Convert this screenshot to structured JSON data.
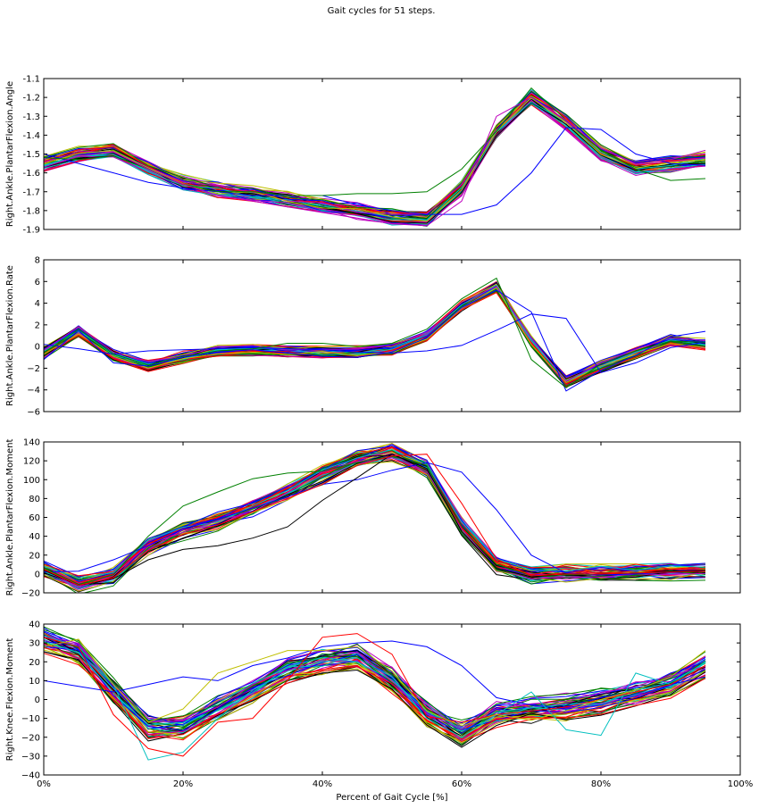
{
  "figure_title": "Gait cycles for 51 steps.",
  "palette": [
    "#0000ff",
    "#008000",
    "#ff0000",
    "#00bfbf",
    "#bf00bf",
    "#bfbf00",
    "#000000"
  ],
  "chart_data": [
    {
      "type": "line",
      "ylabel": "Right.Ankle.PlantarFlexion.Angle",
      "xlim": [
        0,
        100
      ],
      "ylim": [
        -1.9,
        -1.1
      ],
      "yticks": [
        -1.9,
        -1.8,
        -1.7,
        -1.6,
        -1.5,
        -1.4,
        -1.3,
        -1.2,
        -1.1
      ],
      "ytick_labels": [
        "-1.9",
        "-1.8",
        "-1.7",
        "-1.6",
        "-1.5",
        "-1.4",
        "-1.3",
        "-1.2",
        "-1.1"
      ],
      "x": [
        0,
        5,
        10,
        15,
        20,
        25,
        30,
        35,
        40,
        45,
        50,
        55,
        60,
        65,
        70,
        75,
        80,
        85,
        90,
        95
      ],
      "mean": [
        -1.55,
        -1.5,
        -1.48,
        -1.57,
        -1.65,
        -1.69,
        -1.71,
        -1.74,
        -1.77,
        -1.8,
        -1.83,
        -1.84,
        -1.68,
        -1.38,
        -1.2,
        -1.33,
        -1.49,
        -1.57,
        -1.55,
        -1.53
      ],
      "band": 0.03,
      "outliers": [
        {
          "color": "#0000ff",
          "values": [
            -1.5,
            -1.55,
            -1.6,
            -1.65,
            -1.68,
            -1.7,
            -1.72,
            -1.72,
            -1.72,
            -1.77,
            -1.8,
            -1.82,
            -1.82,
            -1.77,
            -1.6,
            -1.36,
            -1.37,
            -1.5,
            -1.55,
            -1.56
          ]
        },
        {
          "color": "#008000",
          "values": [
            -1.52,
            -1.53,
            -1.51,
            -1.58,
            -1.66,
            -1.7,
            -1.7,
            -1.72,
            -1.72,
            -1.71,
            -1.71,
            -1.7,
            -1.58,
            -1.38,
            -1.15,
            -1.32,
            -1.48,
            -1.58,
            -1.64,
            -1.63
          ]
        },
        {
          "color": "#bf00bf",
          "values": [
            -1.57,
            -1.51,
            -1.49,
            -1.58,
            -1.66,
            -1.72,
            -1.75,
            -1.78,
            -1.81,
            -1.84,
            -1.87,
            -1.88,
            -1.75,
            -1.3,
            -1.2,
            -1.32,
            -1.47,
            -1.55,
            -1.53,
            -1.48
          ]
        }
      ]
    },
    {
      "type": "line",
      "ylabel": "Right.Ankle.PlantarFlexion.Rate",
      "xlim": [
        0,
        100
      ],
      "ylim": [
        -6,
        8
      ],
      "yticks": [
        -6,
        -4,
        -2,
        0,
        2,
        4,
        6,
        8
      ],
      "ytick_labels": [
        "−6",
        "−4",
        "−2",
        "0",
        "2",
        "4",
        "6",
        "8"
      ],
      "x": [
        0,
        5,
        10,
        15,
        20,
        25,
        30,
        35,
        40,
        45,
        50,
        55,
        60,
        65,
        70,
        75,
        80,
        85,
        90,
        95
      ],
      "mean": [
        -0.5,
        1.5,
        -0.8,
        -1.7,
        -1.0,
        -0.4,
        -0.3,
        -0.4,
        -0.5,
        -0.5,
        -0.2,
        1.0,
        3.8,
        5.5,
        0.5,
        -3.2,
        -1.8,
        -0.6,
        0.6,
        0.2
      ],
      "band": 0.4,
      "outliers": [
        {
          "color": "#0000ff",
          "values": [
            0.2,
            -0.2,
            -0.7,
            -0.4,
            -0.3,
            -0.2,
            -0.1,
            -0.2,
            -0.3,
            -0.5,
            -0.6,
            -0.4,
            0.1,
            1.5,
            3.0,
            2.6,
            -2.4,
            -1.5,
            -0.1,
            0.4
          ]
        },
        {
          "color": "#0000ff",
          "values": [
            -1.2,
            1.5,
            -1.5,
            -1.8,
            -1.0,
            -0.5,
            -0.3,
            -0.6,
            -0.9,
            -1.0,
            -0.5,
            0.8,
            3.6,
            5.2,
            3.2,
            -4.1,
            -2.2,
            -0.8,
            0.9,
            1.4
          ]
        },
        {
          "color": "#008000",
          "values": [
            -0.6,
            1.6,
            -0.7,
            -1.7,
            -0.9,
            -0.4,
            -0.2,
            0.3,
            0.3,
            0.0,
            0.3,
            1.6,
            4.4,
            6.3,
            -1.2,
            -3.8,
            -1.6,
            -0.4,
            0.5,
            0.4
          ]
        }
      ]
    },
    {
      "type": "line",
      "ylabel": "Right.Ankle.PlantarFlexion.Moment",
      "xlim": [
        0,
        100
      ],
      "ylim": [
        -20,
        140
      ],
      "yticks": [
        -20,
        0,
        20,
        40,
        60,
        80,
        100,
        120,
        140
      ],
      "ytick_labels": [
        "−20",
        "0",
        "20",
        "40",
        "60",
        "80",
        "100",
        "120",
        "140"
      ],
      "x": [
        0,
        5,
        10,
        15,
        20,
        25,
        30,
        35,
        40,
        45,
        50,
        55,
        60,
        65,
        70,
        75,
        80,
        85,
        90,
        95
      ],
      "mean": [
        4,
        -12,
        -3,
        28,
        45,
        55,
        68,
        85,
        105,
        120,
        128,
        110,
        50,
        8,
        -2,
        0,
        0,
        1,
        2,
        3
      ],
      "band": 7,
      "outliers": [
        {
          "color": "#0000ff",
          "values": [
            2,
            3,
            15,
            30,
            48,
            58,
            70,
            82,
            95,
            100,
            110,
            118,
            108,
            68,
            20,
            1,
            -1,
            0,
            2,
            4
          ]
        },
        {
          "color": "#008000",
          "values": [
            6,
            -11,
            -1,
            40,
            72,
            87,
            101,
            107,
            109,
            118,
            125,
            115,
            45,
            5,
            -3,
            -1,
            0,
            1,
            2,
            3
          ]
        },
        {
          "color": "#000000",
          "values": [
            4,
            -12,
            -5,
            15,
            26,
            30,
            38,
            50,
            78,
            102,
            127,
            112,
            45,
            6,
            -3,
            0,
            0,
            1,
            3,
            4
          ]
        },
        {
          "color": "#ff0000",
          "values": [
            5,
            -12,
            -4,
            25,
            42,
            52,
            66,
            80,
            95,
            115,
            125,
            127,
            75,
            16,
            -2,
            0,
            0,
            1,
            2,
            3
          ]
        }
      ]
    },
    {
      "type": "line",
      "ylabel": "Right.Knee.Flexion.Moment",
      "xlabel": "Percent of Gait Cycle [%]",
      "xlim": [
        0,
        100
      ],
      "ylim": [
        -40,
        40
      ],
      "yticks": [
        -40,
        -30,
        -20,
        -10,
        0,
        10,
        20,
        30,
        40
      ],
      "ytick_labels": [
        "−40",
        "−30",
        "−20",
        "−10",
        "0",
        "10",
        "20",
        "30",
        "40"
      ],
      "xticks": [
        0,
        20,
        40,
        60,
        80,
        100
      ],
      "xtick_labels": [
        "0%",
        "20%",
        "40%",
        "60%",
        "80%",
        "100%"
      ],
      "x": [
        0,
        5,
        10,
        15,
        20,
        25,
        30,
        35,
        40,
        45,
        50,
        55,
        60,
        65,
        70,
        75,
        80,
        85,
        90,
        95
      ],
      "mean": [
        32,
        25,
        5,
        -15,
        -15,
        -5,
        5,
        15,
        20,
        22,
        10,
        -8,
        -18,
        -8,
        -6,
        -4,
        -1,
        3,
        8,
        18
      ],
      "band": 5,
      "outliers": [
        {
          "color": "#0000ff",
          "values": [
            10,
            7,
            4,
            8,
            12,
            10,
            18,
            22,
            28,
            30,
            31,
            28,
            18,
            1,
            -3,
            -5,
            -3,
            2,
            8,
            12
          ]
        },
        {
          "color": "#00bfbf",
          "values": [
            34,
            28,
            8,
            -32,
            -28,
            -10,
            5,
            15,
            20,
            22,
            12,
            -10,
            -20,
            -8,
            4,
            -16,
            -19,
            14,
            8,
            20
          ]
        },
        {
          "color": "#ff0000",
          "values": [
            33,
            28,
            -8,
            -26,
            -30,
            -12,
            -10,
            10,
            33,
            35,
            24,
            -9,
            -12,
            -8,
            -6,
            -4,
            0,
            4,
            8,
            18
          ]
        },
        {
          "color": "#bfbf00",
          "values": [
            28,
            32,
            8,
            -12,
            -5,
            14,
            20,
            26,
            26,
            28,
            15,
            -6,
            -14,
            -8,
            -11,
            -6,
            0,
            5,
            12,
            26
          ]
        }
      ]
    }
  ]
}
